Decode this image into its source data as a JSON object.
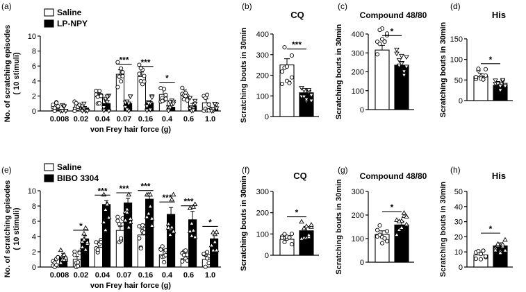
{
  "chart_data": [
    {
      "panel": "(a)",
      "type": "bar",
      "ylabel": "No. of scratching episodes",
      "ylabel2": "( 10 stimuli)",
      "xlabel": "von Frey hair force (g)",
      "categories": [
        "0.008",
        "0.02",
        "0.04",
        "0.07",
        "0.16",
        "0.4",
        "0.6",
        "1.0"
      ],
      "ylim": [
        0,
        10
      ],
      "yticks": [
        "0",
        "2",
        "4",
        "6",
        "8",
        "10"
      ],
      "legend": [
        "Saline",
        "LP-NPY"
      ],
      "series": [
        {
          "name": "Saline",
          "values": [
            0.1,
            0.5,
            1.9,
            4.9,
            4.6,
            2.2,
            2.2,
            1.1
          ],
          "errors": [
            0.1,
            0.3,
            0.5,
            0.6,
            0.6,
            0.9,
            0.6,
            0.5
          ]
        },
        {
          "name": "LP-NPY",
          "values": [
            0.05,
            0.4,
            1.0,
            1.0,
            1.1,
            0.5,
            0.7,
            0.3
          ],
          "errors": [
            0.05,
            0.2,
            0.3,
            0.2,
            0.3,
            0.2,
            0.3,
            0.2
          ]
        }
      ],
      "significance": [
        "",
        "",
        "",
        "***",
        "***",
        "*",
        "",
        ""
      ]
    },
    {
      "panel": "(b)",
      "type": "bar",
      "title": "CQ",
      "ylabel": "Scratching bouts in 30min",
      "ylim": [
        0,
        400
      ],
      "yticks": [
        "0",
        "100",
        "200",
        "300",
        "400"
      ],
      "series": [
        {
          "name": "Saline",
          "value": 250,
          "error": 30
        },
        {
          "name": "LP-NPY",
          "value": 115,
          "error": 17
        }
      ],
      "significance": "***"
    },
    {
      "panel": "(c)",
      "type": "bar",
      "title": "Compound 48/80",
      "ylabel": "Scratching bouts in 30min",
      "ylim": [
        0,
        400
      ],
      "yticks": [
        "0",
        "100",
        "200",
        "300",
        "400"
      ],
      "series": [
        {
          "name": "Saline",
          "value": 315,
          "error": 25
        },
        {
          "name": "LP-NPY",
          "value": 235,
          "error": 20
        }
      ],
      "significance": "*"
    },
    {
      "panel": "(d)",
      "type": "bar",
      "title": "His",
      "ylabel": "Scratching bouts in 30min",
      "ylim": [
        0,
        150
      ],
      "yticks": [
        "0",
        "50",
        "100",
        "150"
      ],
      "series": [
        {
          "name": "Saline",
          "value": 58,
          "error": 8
        },
        {
          "name": "LP-NPY",
          "value": 37,
          "error": 6
        }
      ],
      "significance": "*"
    },
    {
      "panel": "(e)",
      "type": "bar",
      "ylabel": "No. of scratching episodes",
      "ylabel2": "( 10 stimuli)",
      "xlabel": "von Frey hair force (g)",
      "categories": [
        "0.008",
        "0.02",
        "0.04",
        "0.07",
        "0.16",
        "0.4",
        "0.6",
        "1.0"
      ],
      "ylim": [
        0,
        10
      ],
      "yticks": [
        "0",
        "2",
        "4",
        "6",
        "8",
        "10"
      ],
      "legend": [
        "Saline",
        "BIBO 3304"
      ],
      "series": [
        {
          "name": "Saline",
          "values": [
            0.2,
            1.0,
            2.6,
            4.8,
            4.2,
            1.6,
            1.1,
            1.0
          ],
          "errors": [
            0.1,
            0.4,
            0.7,
            0.5,
            0.8,
            0.7,
            0.5,
            0.4
          ]
        },
        {
          "name": "BIBO 3304",
          "values": [
            1.3,
            3.7,
            8.2,
            8.4,
            8.9,
            6.9,
            6.2,
            3.7
          ],
          "errors": [
            0.5,
            0.4,
            0.5,
            0.6,
            0.4,
            0.9,
            1.1,
            0.9
          ]
        }
      ],
      "significance": [
        "",
        "*",
        "***",
        "***",
        "***",
        "***",
        "***",
        "*"
      ]
    },
    {
      "panel": "(f)",
      "type": "bar",
      "title": "CQ",
      "ylabel": "Scratching bouts in 30min",
      "ylim": [
        0,
        300
      ],
      "yticks": [
        "0",
        "100",
        "200",
        "300"
      ],
      "series": [
        {
          "name": "Saline",
          "value": 75,
          "error": 12
        },
        {
          "name": "BIBO 3304",
          "value": 115,
          "error": 20
        }
      ],
      "significance": "*"
    },
    {
      "panel": "(g)",
      "type": "bar",
      "title": "Compound 48/80",
      "ylabel": "Scratching bouts in 30min",
      "ylim": [
        0,
        300
      ],
      "yticks": [
        "0",
        "100",
        "200",
        "300"
      ],
      "series": [
        {
          "name": "Saline",
          "value": 118,
          "error": 15
        },
        {
          "name": "BIBO 3304",
          "value": 158,
          "error": 15
        }
      ],
      "significance": "*"
    },
    {
      "panel": "(h)",
      "type": "bar",
      "title": "His",
      "ylabel": "Scratching bouts in 30min",
      "ylim": [
        0,
        50
      ],
      "yticks": [
        "0",
        "10",
        "20",
        "30",
        "40",
        "50"
      ],
      "series": [
        {
          "name": "Saline",
          "value": 8,
          "error": 1.8
        },
        {
          "name": "BIBO 3304",
          "value": 14,
          "error": 2
        }
      ],
      "significance": "*"
    }
  ]
}
